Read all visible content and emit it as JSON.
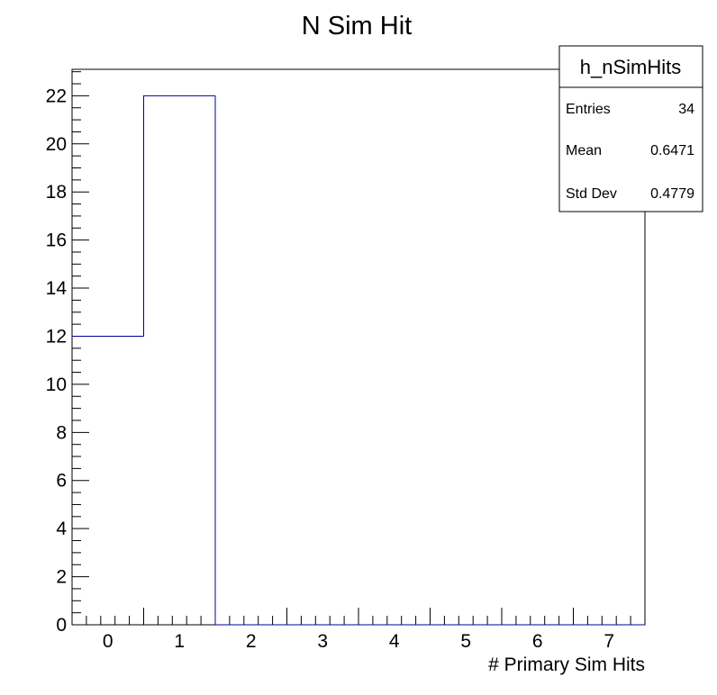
{
  "chart_data": {
    "type": "bar",
    "title": "N Sim Hit",
    "xlabel": "# Primary Sim Hits",
    "ylabel": "",
    "xlim": [
      -0.5,
      7.5
    ],
    "ylim": [
      0,
      23.1
    ],
    "bins": [
      {
        "low": -0.5,
        "high": 0.5,
        "value": 12
      },
      {
        "low": 0.5,
        "high": 1.5,
        "value": 22
      },
      {
        "low": 1.5,
        "high": 2.5,
        "value": 0
      },
      {
        "low": 2.5,
        "high": 3.5,
        "value": 0
      },
      {
        "low": 3.5,
        "high": 4.5,
        "value": 0
      },
      {
        "low": 4.5,
        "high": 5.5,
        "value": 0
      },
      {
        "low": 5.5,
        "high": 6.5,
        "value": 0
      },
      {
        "low": 6.5,
        "high": 7.5,
        "value": 0
      }
    ],
    "x_ticks": [
      "0",
      "1",
      "2",
      "3",
      "4",
      "5",
      "6",
      "7"
    ],
    "y_ticks": [
      "0",
      "2",
      "4",
      "6",
      "8",
      "10",
      "12",
      "14",
      "16",
      "18",
      "20",
      "22"
    ],
    "line_color": "#000099",
    "grid": false,
    "legend_position": "top-right",
    "stats": {
      "name": "h_nSimHits",
      "rows": [
        {
          "label": "Entries",
          "value": "34"
        },
        {
          "label": "Mean",
          "value": "0.6471"
        },
        {
          "label": "Std Dev",
          "value": "0.4779"
        }
      ]
    }
  }
}
